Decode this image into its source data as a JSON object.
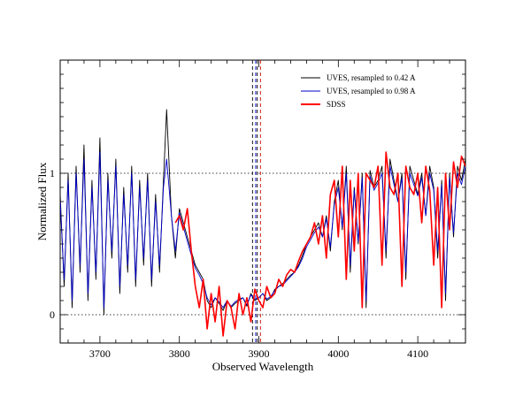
{
  "chart_data": {
    "type": "line",
    "xlabel": "Observed Wavelength",
    "ylabel": "Normalized Flux",
    "xlim": [
      3650,
      4160
    ],
    "ylim": [
      -0.2,
      1.8
    ],
    "x_ticks": [
      3700,
      3800,
      3900,
      4000,
      4100
    ],
    "x_tick_labels": [
      "3700",
      "3800",
      "3900",
      "4000",
      "4100"
    ],
    "y_ticks": [
      0,
      1
    ],
    "y_tick_labels": [
      "0",
      "1"
    ],
    "reference_lines_y": [
      0,
      1
    ],
    "reference_lines_x": [
      {
        "x": 3892,
        "color": "#000000"
      },
      {
        "x": 3896,
        "color": "#0000cc"
      },
      {
        "x": 3898,
        "color": "#000000"
      },
      {
        "x": 3902,
        "color": "#cc0000"
      }
    ],
    "legend_position": "top-right",
    "grid": false,
    "series": [
      {
        "name": "UVES, resampled to 0.42 A",
        "color": "#000000",
        "x": [
          3650,
          3655,
          3660,
          3665,
          3670,
          3675,
          3680,
          3685,
          3690,
          3695,
          3700,
          3705,
          3710,
          3715,
          3720,
          3725,
          3730,
          3735,
          3740,
          3745,
          3750,
          3755,
          3760,
          3765,
          3770,
          3775,
          3780,
          3784,
          3790,
          3795,
          3800,
          3805,
          3810,
          3815,
          3820,
          3825,
          3830,
          3835,
          3840,
          3845,
          3850,
          3855,
          3860,
          3865,
          3870,
          3875,
          3880,
          3885,
          3890,
          3895,
          3900,
          3905,
          3910,
          3915,
          3920,
          3925,
          3930,
          3935,
          3940,
          3945,
          3950,
          3955,
          3960,
          3965,
          3970,
          3975,
          3980,
          3985,
          3990,
          3995,
          4000,
          4005,
          4010,
          4015,
          4020,
          4025,
          4030,
          4035,
          4040,
          4045,
          4050,
          4055,
          4060,
          4065,
          4070,
          4075,
          4080,
          4085,
          4090,
          4095,
          4100,
          4105,
          4110,
          4115,
          4120,
          4125,
          4130,
          4135,
          4140,
          4145,
          4150,
          4155,
          4160
        ],
        "values": [
          0.85,
          0.2,
          1.0,
          0.05,
          1.05,
          0.3,
          1.2,
          0.1,
          0.95,
          0.25,
          1.25,
          0.0,
          1.0,
          0.4,
          1.1,
          0.15,
          0.9,
          0.3,
          1.05,
          0.2,
          0.95,
          0.35,
          1.0,
          0.2,
          0.85,
          0.3,
          0.95,
          1.45,
          0.7,
          0.4,
          0.75,
          0.65,
          0.55,
          0.45,
          0.35,
          0.3,
          0.25,
          0.1,
          0.05,
          0.12,
          0.08,
          0.03,
          0.1,
          0.05,
          0.08,
          0.1,
          0.12,
          0.06,
          0.15,
          0.1,
          0.12,
          0.15,
          0.1,
          0.12,
          0.18,
          0.2,
          0.22,
          0.25,
          0.28,
          0.3,
          0.35,
          0.42,
          0.5,
          0.55,
          0.6,
          0.65,
          0.55,
          0.7,
          0.45,
          0.8,
          0.95,
          0.6,
          1.05,
          0.3,
          0.9,
          0.5,
          1.0,
          0.05,
          1.02,
          0.9,
          0.95,
          1.05,
          0.4,
          1.1,
          0.95,
          0.8,
          1.0,
          0.25,
          1.05,
          0.95,
          0.85,
          1.0,
          0.7,
          1.05,
          0.9,
          0.4,
          0.95,
          0.1,
          1.0,
          0.55,
          1.05,
          0.95,
          1.1
        ]
      },
      {
        "name": "UVES, resampled to 0.98 A",
        "color": "#0000cc",
        "x": [
          3650,
          3655,
          3660,
          3665,
          3670,
          3675,
          3680,
          3685,
          3690,
          3695,
          3700,
          3705,
          3710,
          3715,
          3720,
          3725,
          3730,
          3735,
          3740,
          3745,
          3750,
          3755,
          3760,
          3765,
          3770,
          3775,
          3780,
          3784,
          3790,
          3795,
          3800,
          3805,
          3810,
          3815,
          3820,
          3825,
          3830,
          3835,
          3840,
          3845,
          3850,
          3855,
          3860,
          3865,
          3870,
          3875,
          3880,
          3885,
          3890,
          3895,
          3900,
          3905,
          3910,
          3915,
          3920,
          3925,
          3930,
          3935,
          3940,
          3945,
          3950,
          3955,
          3960,
          3965,
          3970,
          3975,
          3980,
          3985,
          3990,
          3995,
          4000,
          4005,
          4010,
          4015,
          4020,
          4025,
          4030,
          4035,
          4040,
          4045,
          4050,
          4055,
          4060,
          4065,
          4070,
          4075,
          4080,
          4085,
          4090,
          4095,
          4100,
          4105,
          4110,
          4115,
          4120,
          4125,
          4130,
          4135,
          4140,
          4145,
          4150,
          4155,
          4160
        ],
        "values": [
          0.8,
          0.25,
          0.95,
          0.1,
          1.0,
          0.35,
          1.1,
          0.15,
          0.9,
          0.3,
          1.15,
          0.05,
          0.95,
          0.45,
          1.05,
          0.2,
          0.85,
          0.35,
          1.0,
          0.25,
          0.9,
          0.4,
          0.95,
          0.25,
          0.8,
          0.35,
          0.9,
          1.1,
          0.7,
          0.45,
          0.72,
          0.62,
          0.52,
          0.42,
          0.33,
          0.28,
          0.22,
          0.12,
          0.07,
          0.12,
          0.09,
          0.05,
          0.1,
          0.06,
          0.09,
          0.11,
          0.12,
          0.07,
          0.14,
          0.11,
          0.12,
          0.15,
          0.11,
          0.13,
          0.17,
          0.2,
          0.21,
          0.24,
          0.27,
          0.3,
          0.34,
          0.4,
          0.48,
          0.53,
          0.58,
          0.62,
          0.55,
          0.68,
          0.48,
          0.78,
          0.9,
          0.62,
          1.0,
          0.35,
          0.88,
          0.52,
          0.97,
          0.1,
          0.98,
          0.88,
          0.93,
          1.0,
          0.45,
          1.05,
          0.92,
          0.8,
          0.97,
          0.3,
          1.0,
          0.92,
          0.84,
          0.97,
          0.7,
          1.0,
          0.88,
          0.45,
          0.92,
          0.15,
          0.97,
          0.58,
          1.0,
          0.92,
          1.05
        ]
      },
      {
        "name": "SDSS",
        "color": "#ff0000",
        "x": [
          3795,
          3800,
          3805,
          3810,
          3815,
          3820,
          3825,
          3830,
          3835,
          3840,
          3845,
          3850,
          3855,
          3860,
          3865,
          3870,
          3875,
          3880,
          3885,
          3890,
          3895,
          3900,
          3905,
          3910,
          3915,
          3920,
          3925,
          3930,
          3935,
          3940,
          3945,
          3950,
          3955,
          3960,
          3965,
          3970,
          3975,
          3980,
          3985,
          3990,
          3995,
          4000,
          4005,
          4010,
          4015,
          4020,
          4025,
          4030,
          4035,
          4040,
          4045,
          4050,
          4055,
          4060,
          4065,
          4070,
          4075,
          4080,
          4085,
          4090,
          4095,
          4100,
          4105,
          4110,
          4115,
          4120,
          4125,
          4130,
          4135,
          4140,
          4145,
          4150,
          4155,
          4160
        ],
        "values": [
          0.65,
          0.7,
          0.6,
          0.75,
          0.45,
          0.2,
          0.05,
          0.25,
          -0.1,
          0.15,
          -0.05,
          0.2,
          -0.15,
          0.1,
          0.05,
          -0.1,
          0.15,
          0.0,
          0.12,
          -0.05,
          0.18,
          0.1,
          0.05,
          0.2,
          0.12,
          0.15,
          0.25,
          0.2,
          0.28,
          0.32,
          0.3,
          0.38,
          0.45,
          0.5,
          0.55,
          0.65,
          0.5,
          0.7,
          0.4,
          0.85,
          0.95,
          0.55,
          1.05,
          0.25,
          0.95,
          0.45,
          1.0,
          0.05,
          1.0,
          0.95,
          0.9,
          1.05,
          0.35,
          1.15,
          0.9,
          0.85,
          1.0,
          0.2,
          1.05,
          0.9,
          0.85,
          1.0,
          0.65,
          1.05,
          0.88,
          0.35,
          0.9,
          0.05,
          1.0,
          0.6,
          1.08,
          0.9,
          1.12,
          1.05
        ]
      }
    ]
  }
}
